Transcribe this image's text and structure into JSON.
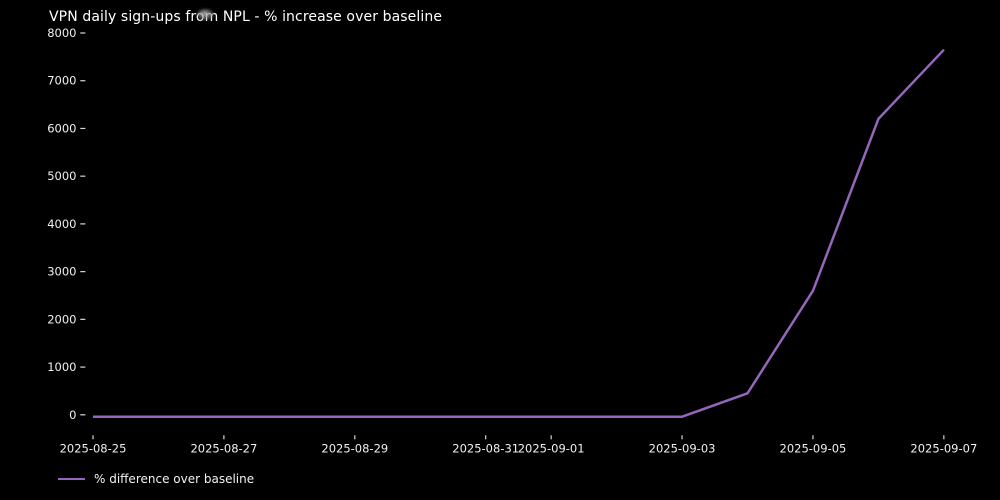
{
  "title": "VPN daily sign-ups from NPL - % increase over baseline",
  "legend": {
    "label": "% difference over baseline"
  },
  "colors": {
    "background": "#000000",
    "title_text": "#ffffff",
    "tick_text": "#f0f0f0",
    "tick_mark": "#d9d9d9",
    "line": "#9467bd"
  },
  "chart_data": {
    "type": "line",
    "title": "VPN daily sign-ups from NPL - % increase over baseline",
    "xlabel": "",
    "ylabel": "",
    "grid": false,
    "background": "black",
    "legend_position": "lower-left-outside",
    "x": [
      "2025-08-25",
      "2025-08-26",
      "2025-08-27",
      "2025-08-28",
      "2025-08-29",
      "2025-08-30",
      "2025-08-31",
      "2025-09-01",
      "2025-09-02",
      "2025-09-03",
      "2025-09-04",
      "2025-09-05",
      "2025-09-06",
      "2025-09-07"
    ],
    "series": [
      {
        "name": "% difference over baseline",
        "values": [
          -40,
          -40,
          -40,
          -40,
          -40,
          -40,
          -40,
          -40,
          -40,
          -40,
          450,
          2600,
          6200,
          7650
        ]
      }
    ],
    "x_tick_labels": [
      "2025-08-25",
      "2025-08-27",
      "2025-08-29",
      "2025-08-31",
      "2025-09-01",
      "2025-09-03",
      "2025-09-05",
      "2025-09-07"
    ],
    "y_ticks": [
      0,
      1000,
      2000,
      3000,
      4000,
      5000,
      6000,
      7000,
      8000
    ],
    "ylim": [
      -430,
      8040
    ]
  }
}
